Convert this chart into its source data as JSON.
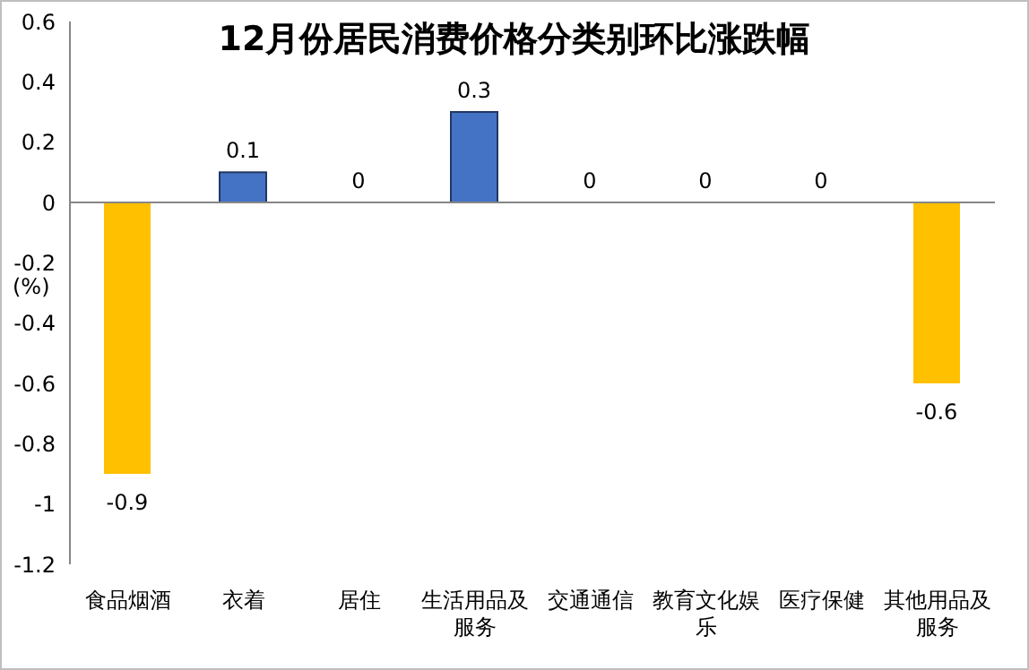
{
  "chart_data": {
    "type": "bar",
    "title": "12月份居民消费价格分类别环比涨跌幅",
    "ylabel": "(%)",
    "categories": [
      "食品烟酒",
      "衣着",
      "居住",
      "生活用品及服务",
      "交通通信",
      "教育文化娱乐",
      "医疗保健",
      "其他用品及服务"
    ],
    "values": [
      -0.9,
      0.1,
      0,
      0.3,
      0,
      0,
      0,
      -0.6
    ],
    "colors": [
      "#ffc000",
      "#4472c4",
      "#4472c4",
      "#4472c4",
      "#4472c4",
      "#4472c4",
      "#4472c4",
      "#ffc000"
    ],
    "ylim": [
      -1.2,
      0.6
    ],
    "yticks": [
      -1.2,
      -1,
      -0.8,
      -0.6,
      -0.4,
      -0.2,
      0,
      0.2,
      0.4,
      0.6
    ],
    "ref_lines": [
      {
        "axis": "y",
        "value": 0,
        "color": "#868686"
      }
    ],
    "data_labels": true,
    "grid": false,
    "legend": false
  }
}
